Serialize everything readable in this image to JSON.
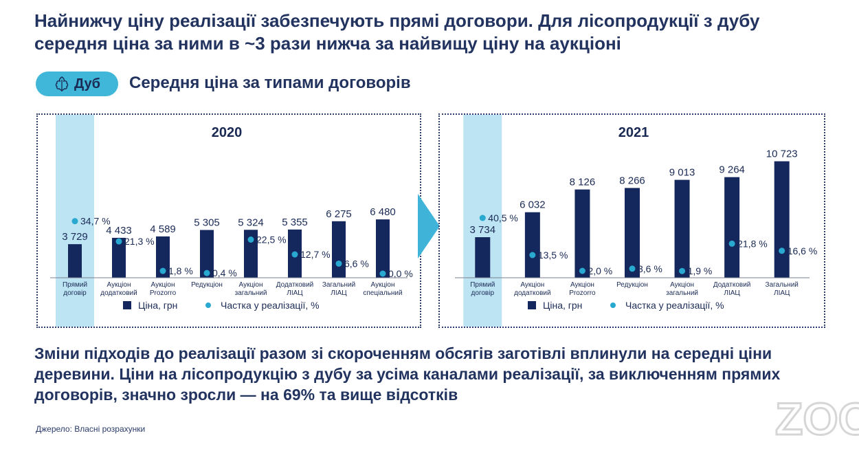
{
  "headline": "Найнижчу ціну реалізації забезпечують прямі договори. Для лісопродукції з дубу середня ціна за ними в ~3 рази нижча за найвищу ціну на аукціоні",
  "tag": {
    "label": "Дуб",
    "icon": "oak-leaf-icon"
  },
  "subtitle": "Середня ціна за типами договорів",
  "bottom_text": "Зміни підходів до реалізації разом зі скороченням обсягів заготівлі вплинули на середні ціни деревини. Ціни на лісопродукцію з дубу за усіма каналами реалізації, за виключенням прямих договорів, значно зросли — на 69% та вище відсотків",
  "source": "Джерело: Власні розрахунки",
  "watermark": "ZOO",
  "colors": {
    "bar": "#14285e",
    "dot": "#29a9cf",
    "highlight": "#bde4f3",
    "tag": "#40b6d8",
    "arrow": "#3fb4d8"
  },
  "chart_data": [
    {
      "type": "bar",
      "title": "2020",
      "categories": [
        [
          "Прямий",
          "договір"
        ],
        [
          "Аукціон",
          "додатковий"
        ],
        [
          "Аукціон",
          "Prozorro"
        ],
        [
          "Редукціон"
        ],
        [
          "Аукціон",
          "загальний"
        ],
        [
          "Додатковий",
          "ЛІАЦ"
        ],
        [
          "Загальний",
          "ЛІАЦ"
        ],
        [
          "Аукціон",
          "спеціальний"
        ]
      ],
      "highlight_category": 0,
      "series": [
        {
          "name": "Ціна, грн",
          "kind": "bar",
          "values": [
            3729,
            4433,
            4589,
            5305,
            5324,
            5355,
            6275,
            6480
          ],
          "labels": [
            "3 729",
            "4 433",
            "4 589",
            "5 305",
            "5 324",
            "5 355",
            "6 275",
            "6 480"
          ]
        },
        {
          "name": "Частка у реалізації, %",
          "kind": "dot",
          "values": [
            34.7,
            21.3,
            1.8,
            0.4,
            22.5,
            12.7,
            6.6,
            0.0
          ],
          "labels": [
            "34,7 %",
            "21,3 %",
            "1,8 %",
            "0,4 %",
            "22,5 %",
            "12,7 %",
            "6,6 %",
            "0,0 %"
          ]
        }
      ],
      "legend": "bottom"
    },
    {
      "type": "bar",
      "title": "2021",
      "categories": [
        [
          "Прямий",
          "договір"
        ],
        [
          "Аукціон",
          "додатковий"
        ],
        [
          "Аукціон",
          "Prozorro"
        ],
        [
          "Редукціон"
        ],
        [
          "Аукціон",
          "загальний"
        ],
        [
          "Додатковий",
          "ЛІАЦ"
        ],
        [
          "Загальний",
          "ЛІАЦ"
        ]
      ],
      "highlight_category": 0,
      "series": [
        {
          "name": "Ціна, грн",
          "kind": "bar",
          "values": [
            3734,
            6032,
            8126,
            8266,
            9013,
            9264,
            10723
          ],
          "labels": [
            "3 734",
            "6 032",
            "8 126",
            "8 266",
            "9 013",
            "9 264",
            "10 723"
          ]
        },
        {
          "name": "Частка у реалізації, %",
          "kind": "dot",
          "values": [
            40.5,
            13.5,
            2.0,
            3.6,
            1.9,
            21.8,
            16.6
          ],
          "labels": [
            "40,5 %",
            "13,5 %",
            "2,0 %",
            "3,6 %",
            "1,9 %",
            "21,8 %",
            "16,6 %"
          ]
        }
      ],
      "legend": "bottom"
    }
  ]
}
